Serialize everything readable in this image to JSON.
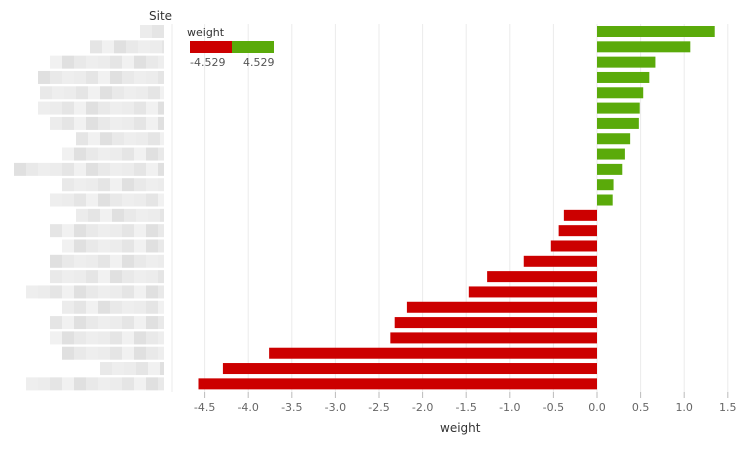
{
  "chart_data": {
    "type": "bar",
    "orientation": "horizontal",
    "row_header": "Site",
    "xlabel": "weight",
    "xlim": [
      -4.75,
      1.55
    ],
    "xticks": [
      -4.5,
      -4.0,
      -3.5,
      -3.0,
      -2.5,
      -2.0,
      -1.5,
      -1.0,
      -0.5,
      0.0,
      0.5,
      1.0,
      1.5
    ],
    "xtick_labels": [
      "-4.5",
      "-4.0",
      "-3.5",
      "-3.0",
      "-2.5",
      "-2.0",
      "-1.5",
      "-1.0",
      "-0.5",
      "0.0",
      "0.5",
      "1.0",
      "1.5"
    ],
    "grid": true,
    "values": [
      1.35,
      1.07,
      0.67,
      0.6,
      0.53,
      0.49,
      0.48,
      0.38,
      0.32,
      0.29,
      0.19,
      0.18,
      -0.38,
      -0.44,
      -0.53,
      -0.84,
      -1.26,
      -1.47,
      -2.18,
      -2.32,
      -2.37,
      -3.76,
      -4.29,
      -4.57
    ],
    "legend": {
      "title": "weight",
      "min_label": "-4.529",
      "max_label": "4.529",
      "placement": "top-left"
    },
    "colors": {
      "positive": "#5aaa0a",
      "negative": "#cc0000",
      "grid": "#ebebeb",
      "label_blur": "#e4e4e4"
    }
  }
}
